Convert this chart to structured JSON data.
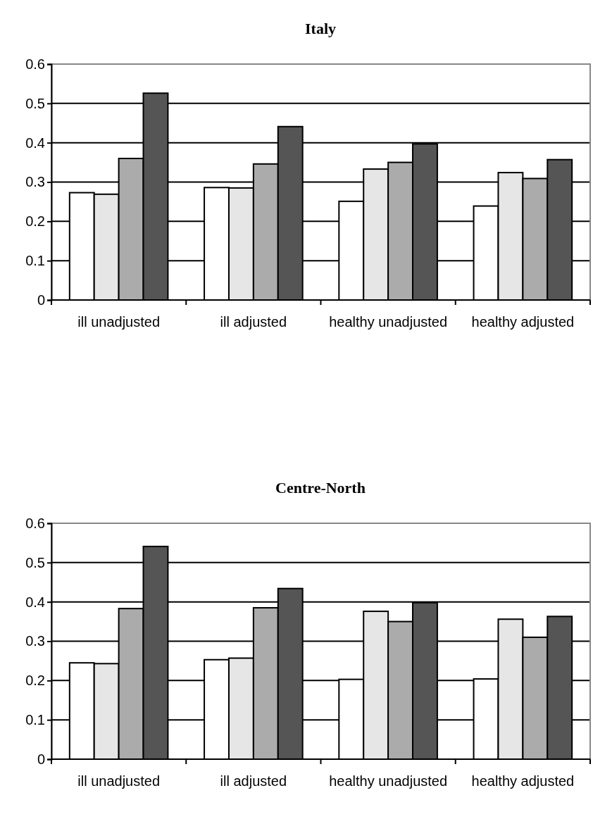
{
  "chart_data": [
    {
      "type": "bar",
      "title": "Italy",
      "categories": [
        "ill unadjusted",
        "ill adjusted",
        "healthy unadjusted",
        "healthy adjusted"
      ],
      "series": [
        {
          "color": "#ffffff",
          "values": [
            0.273,
            0.286,
            0.251,
            0.239
          ]
        },
        {
          "color": "#e6e6e6",
          "values": [
            0.269,
            0.285,
            0.333,
            0.324
          ]
        },
        {
          "color": "#ababab",
          "values": [
            0.36,
            0.346,
            0.35,
            0.309
          ]
        },
        {
          "color": "#555555",
          "values": [
            0.526,
            0.441,
            0.397,
            0.357
          ]
        }
      ],
      "ylim": [
        0,
        0.6
      ],
      "yticks": [
        0,
        0.1,
        0.2,
        0.3,
        0.4,
        0.5,
        0.6
      ],
      "grid": "y"
    },
    {
      "type": "bar",
      "title": "Centre-North",
      "categories": [
        "ill unadjusted",
        "ill adjusted",
        "healthy unadjusted",
        "healthy adjusted"
      ],
      "series": [
        {
          "color": "#ffffff",
          "values": [
            0.245,
            0.253,
            0.203,
            0.204
          ]
        },
        {
          "color": "#e6e6e6",
          "values": [
            0.243,
            0.257,
            0.376,
            0.356
          ]
        },
        {
          "color": "#ababab",
          "values": [
            0.383,
            0.385,
            0.35,
            0.31
          ]
        },
        {
          "color": "#555555",
          "values": [
            0.541,
            0.434,
            0.398,
            0.363
          ]
        }
      ],
      "ylim": [
        0,
        0.6
      ],
      "yticks": [
        0,
        0.1,
        0.2,
        0.3,
        0.4,
        0.5,
        0.6
      ],
      "grid": "y"
    }
  ]
}
